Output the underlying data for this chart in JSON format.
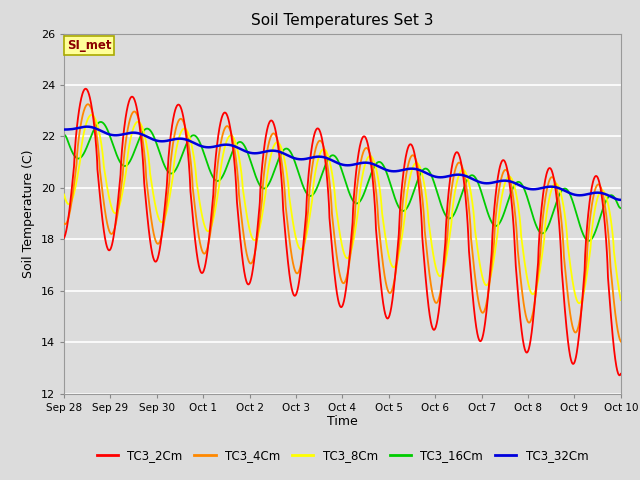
{
  "title": "Soil Temperatures Set 3",
  "xlabel": "Time",
  "ylabel": "Soil Temperature (C)",
  "ylim": [
    12,
    26
  ],
  "yticks": [
    12,
    14,
    16,
    18,
    20,
    22,
    24,
    26
  ],
  "background_color": "#dcdcdc",
  "plot_bg_color": "#dcdcdc",
  "grid_color": "#ffffff",
  "line_colors": {
    "TC3_2Cm": "#ff0000",
    "TC3_4Cm": "#ff8800",
    "TC3_8Cm": "#ffff00",
    "TC3_16Cm": "#00cc00",
    "TC3_32Cm": "#0000dd"
  },
  "legend_label": "SI_met",
  "legend_bg": "#ffff99",
  "legend_border": "#aaaa00"
}
